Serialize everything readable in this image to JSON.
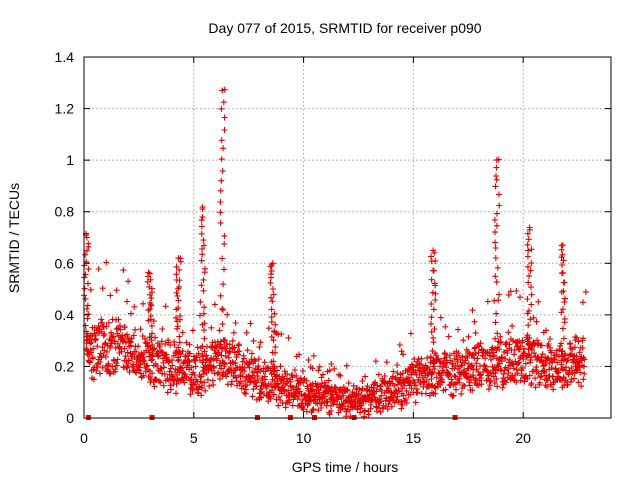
{
  "chart_data": {
    "type": "scatter",
    "title": "Day 077 of 2015, SRMTID for receiver p090",
    "xlabel": "GPS time / hours",
    "ylabel": "SRMTID / TECUs",
    "xlim": [
      0,
      24
    ],
    "ylim": [
      0,
      1.4
    ],
    "x_ticks": [
      0,
      5,
      10,
      15,
      20
    ],
    "x_tick_labels": [
      "0",
      "5",
      "10",
      "15",
      "20"
    ],
    "y_ticks": [
      0,
      0.2,
      0.4,
      0.6,
      0.8,
      1.0,
      1.2,
      1.4
    ],
    "y_tick_labels": [
      "0",
      "0.2",
      "0.4",
      "0.6",
      "0.8",
      "1",
      "1.2",
      "1.4"
    ],
    "grid": true,
    "marker": "+",
    "color": "#e60000",
    "x_range": [
      0.1,
      22.8
    ],
    "median_profile": {
      "x": [
        0,
        1,
        2,
        3,
        4,
        5,
        6,
        7,
        8,
        9,
        10,
        11,
        12,
        12.7,
        13,
        14,
        15,
        16,
        17,
        18,
        19,
        20,
        21,
        22,
        22.8
      ],
      "y": [
        0.24,
        0.28,
        0.27,
        0.22,
        0.2,
        0.17,
        0.22,
        0.2,
        0.15,
        0.13,
        0.1,
        0.09,
        0.07,
        0.06,
        0.08,
        0.1,
        0.14,
        0.17,
        0.18,
        0.2,
        0.22,
        0.24,
        0.21,
        0.2,
        0.22
      ]
    },
    "spikes": [
      {
        "x": 0.1,
        "peak": 0.71
      },
      {
        "x": 3.0,
        "peak": 0.56
      },
      {
        "x": 4.3,
        "peak": 0.62
      },
      {
        "x": 5.4,
        "peak": 0.81
      },
      {
        "x": 6.3,
        "peak": 1.27
      },
      {
        "x": 8.6,
        "peak": 0.6
      },
      {
        "x": 15.9,
        "peak": 0.65
      },
      {
        "x": 18.8,
        "peak": 1.0
      },
      {
        "x": 20.3,
        "peak": 0.73
      },
      {
        "x": 21.8,
        "peak": 0.67
      }
    ],
    "baseline_markers_x": [
      0.2,
      3.1,
      7.9,
      9.4,
      10.5,
      12.3,
      16.9
    ]
  }
}
